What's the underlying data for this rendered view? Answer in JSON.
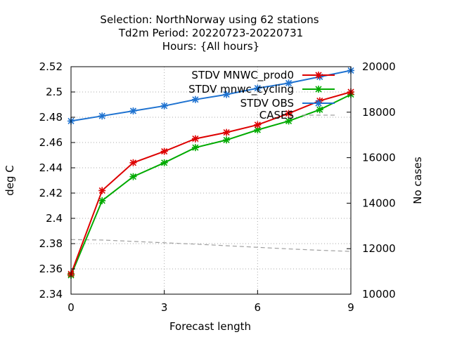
{
  "chart_data": {
    "type": "line",
    "title_lines": [
      "Selection: NorthNorway using    62 stations",
      "Td2m   Period: 20220723-20220731",
      "Hours: {All hours}"
    ],
    "xlabel": "Forecast length",
    "ylabel": "deg C",
    "y2label": "No cases",
    "x": [
      0,
      1,
      2,
      3,
      4,
      5,
      6,
      7,
      8,
      9
    ],
    "xlim": [
      0,
      9
    ],
    "xticks": [
      0,
      3,
      6,
      9
    ],
    "ylim": [
      2.34,
      2.52
    ],
    "yticks": [
      2.34,
      2.36,
      2.38,
      2.4,
      2.42,
      2.44,
      2.46,
      2.48,
      2.5,
      2.52
    ],
    "y2lim": [
      10000,
      20000
    ],
    "y2ticks": [
      10000,
      12000,
      14000,
      16000,
      18000,
      20000
    ],
    "grid": true,
    "legend_position": "top-right",
    "series": [
      {
        "name": "STDV MNWC_prod0",
        "color": "#dd0000",
        "axis": "y",
        "style": "solid",
        "values": [
          2.356,
          2.422,
          2.444,
          2.453,
          2.463,
          2.468,
          2.474,
          2.483,
          2.493,
          2.5
        ]
      },
      {
        "name": "STDV mnwc_cycling",
        "color": "#00aa00",
        "axis": "y",
        "style": "solid",
        "values": [
          2.355,
          2.414,
          2.433,
          2.444,
          2.456,
          2.462,
          2.47,
          2.477,
          2.486,
          2.498
        ]
      },
      {
        "name": "STDV OBS",
        "color": "#1e72d0",
        "axis": "y",
        "style": "solid",
        "values": [
          2.477,
          2.481,
          2.485,
          2.489,
          2.494,
          2.498,
          2.503,
          2.507,
          2.512,
          2.517
        ]
      },
      {
        "name": "CASES",
        "color": "#a0a0a0",
        "axis": "y2",
        "style": "dashed",
        "values": [
          12400,
          12380,
          12320,
          12260,
          12200,
          12130,
          12060,
          11990,
          11930,
          11880
        ]
      }
    ]
  }
}
